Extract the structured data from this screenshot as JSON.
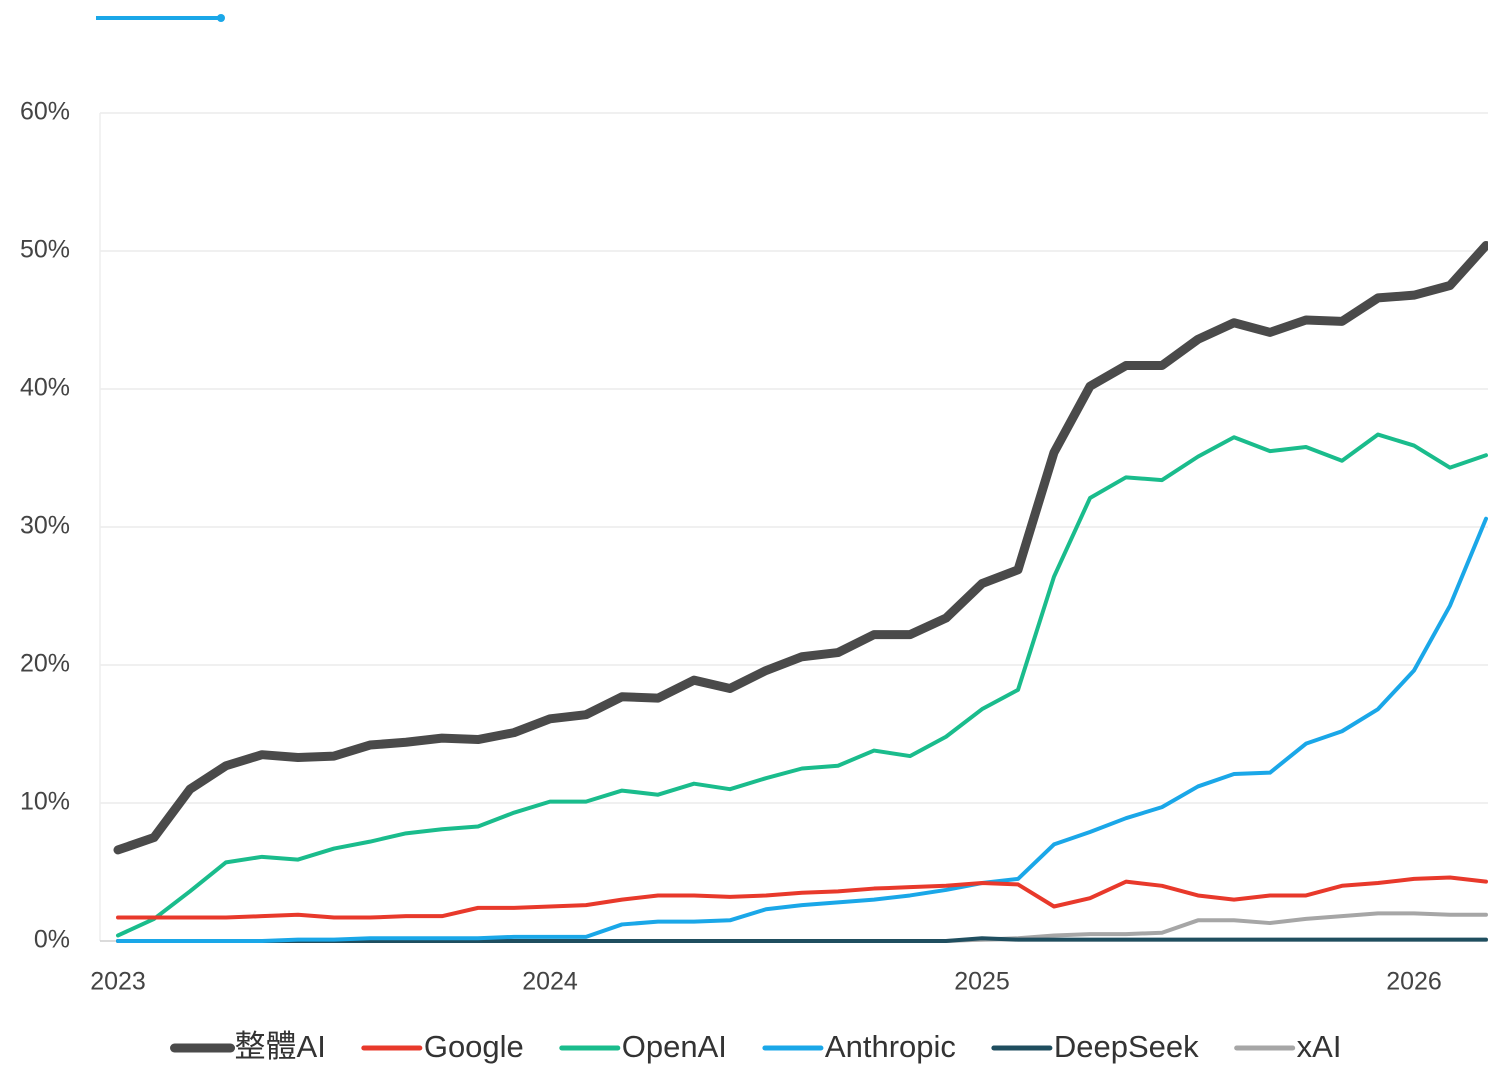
{
  "chart_data": {
    "type": "line",
    "categories": [
      "2023",
      null,
      null,
      null,
      null,
      null,
      null,
      null,
      null,
      null,
      null,
      null,
      "2024",
      null,
      null,
      null,
      null,
      null,
      null,
      null,
      null,
      null,
      null,
      null,
      "2025",
      null,
      null,
      null,
      null,
      null,
      null,
      null,
      null,
      null,
      null,
      null,
      "2026",
      null,
      null
    ],
    "ylim": [
      0,
      60
    ],
    "yticks": [
      {
        "value": 0,
        "label": "0%"
      },
      {
        "value": 10,
        "label": "10%"
      },
      {
        "value": 20,
        "label": "20%"
      },
      {
        "value": 30,
        "label": "30%"
      },
      {
        "value": 40,
        "label": "40%"
      },
      {
        "value": 50,
        "label": "50%"
      },
      {
        "value": 60,
        "label": "60%"
      }
    ],
    "grid": true,
    "legend": "bottom",
    "series": [
      {
        "name": "整體AI",
        "color": "#4a4a4a",
        "values": [
          6.6,
          7.5,
          11.0,
          12.7,
          13.5,
          13.3,
          13.4,
          14.2,
          14.4,
          14.7,
          14.6,
          15.1,
          16.1,
          16.4,
          17.7,
          17.6,
          18.9,
          18.3,
          19.6,
          20.6,
          20.9,
          22.2,
          22.2,
          23.4,
          25.9,
          26.9,
          35.4,
          40.2,
          41.7,
          41.7,
          43.6,
          44.8,
          44.1,
          45.0,
          44.9,
          46.6,
          46.8,
          47.5,
          50.4
        ]
      },
      {
        "name": "Google",
        "color": "#e8392b",
        "values": [
          1.7,
          1.7,
          1.7,
          1.7,
          1.8,
          1.9,
          1.7,
          1.7,
          1.8,
          1.8,
          2.4,
          2.4,
          2.5,
          2.6,
          3.0,
          3.3,
          3.3,
          3.2,
          3.3,
          3.5,
          3.6,
          3.8,
          3.9,
          4.0,
          4.2,
          4.1,
          2.5,
          3.1,
          4.3,
          4.0,
          3.3,
          3.0,
          3.3,
          3.3,
          4.0,
          4.2,
          4.5,
          4.6,
          4.3
        ]
      },
      {
        "name": "OpenAI",
        "color": "#1abc8c",
        "values": [
          0.4,
          1.6,
          3.6,
          5.7,
          6.1,
          5.9,
          6.7,
          7.2,
          7.8,
          8.1,
          8.3,
          9.3,
          10.1,
          10.1,
          10.9,
          10.6,
          11.4,
          11.0,
          11.8,
          12.5,
          12.7,
          13.8,
          13.4,
          14.8,
          16.8,
          18.2,
          26.4,
          32.1,
          33.6,
          33.4,
          35.1,
          36.5,
          35.5,
          35.8,
          34.8,
          36.7,
          35.9,
          34.3,
          35.2
        ]
      },
      {
        "name": "Anthropic",
        "color": "#1aa7e8",
        "values": [
          0,
          0,
          0,
          0,
          0,
          0.1,
          0.1,
          0.2,
          0.2,
          0.2,
          0.2,
          0.3,
          0.3,
          0.3,
          1.2,
          1.4,
          1.4,
          1.5,
          2.3,
          2.6,
          2.8,
          3.0,
          3.3,
          3.7,
          4.2,
          4.5,
          7.0,
          7.9,
          8.9,
          9.7,
          11.2,
          12.1,
          12.2,
          14.3,
          15.2,
          16.8,
          19.6,
          24.3,
          30.6
        ]
      },
      {
        "name": "DeepSeek",
        "color": "#1f4e5f",
        "values": [
          0,
          0,
          0,
          0,
          0,
          0,
          0,
          0,
          0,
          0,
          0,
          0,
          0,
          0,
          0,
          0,
          0,
          0,
          0,
          0,
          0,
          0,
          0,
          0,
          0.2,
          0.1,
          0.1,
          0.1,
          0.1,
          0.1,
          0.1,
          0.1,
          0.1,
          0.1,
          0.1,
          0.1,
          0.1,
          0.1,
          0.1
        ]
      },
      {
        "name": "xAI",
        "color": "#a6a6a6",
        "values": [
          0,
          0,
          0,
          0,
          0,
          0,
          0,
          0,
          0,
          0,
          0,
          0,
          0,
          0,
          0,
          0,
          0,
          0,
          0,
          0,
          0,
          0,
          0,
          0,
          0.1,
          0.2,
          0.4,
          0.5,
          0.5,
          0.6,
          1.5,
          1.5,
          1.3,
          1.6,
          1.8,
          2.0,
          2.0,
          1.9,
          1.9
        ]
      }
    ]
  }
}
